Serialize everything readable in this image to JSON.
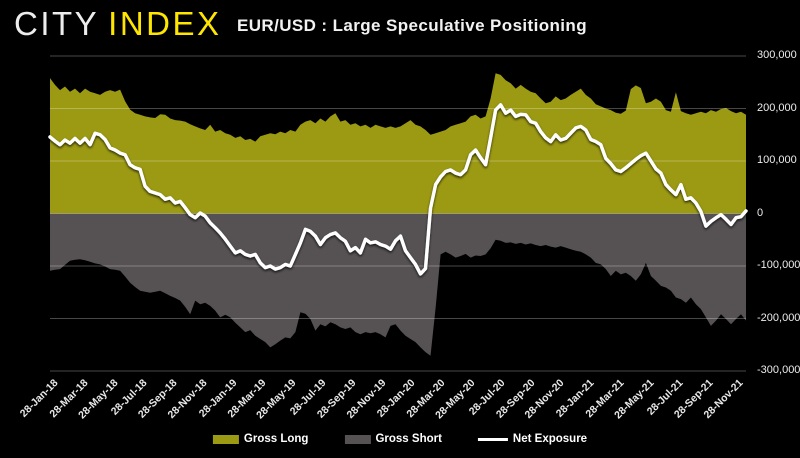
{
  "logo": {
    "city": "CITY",
    "index": "INDEX"
  },
  "title": "EUR/USD : Large Speculative Positioning",
  "colors": {
    "background": "#000000",
    "gross_long": "#9c9a12",
    "gross_short": "#565253",
    "net_exposure": "#ffffff",
    "gridline": "rgba(255,255,255,0.28)",
    "axis_text": "#ededed",
    "brand_yellow": "#ffe600"
  },
  "legend": {
    "items": [
      {
        "label": "Gross Long",
        "swatch": "area",
        "color": "#9c9a12"
      },
      {
        "label": "Gross Short",
        "swatch": "area",
        "color": "#565253"
      },
      {
        "label": "Net Exposure",
        "swatch": "line",
        "color": "#ffffff"
      }
    ]
  },
  "y_axis": {
    "ticks": [
      300000,
      200000,
      100000,
      0,
      -100000,
      -200000,
      -300000
    ],
    "tick_labels": [
      "300,000",
      "200,000",
      "100,000",
      "0",
      "-100,000",
      "-200,000",
      "-300,000"
    ]
  },
  "chart_data": {
    "type": "area",
    "title": "EUR/USD : Large Speculative Positioning",
    "x_description": "Weekly CFTC positioning observations, uniformly spaced from 28-Jan-18 to late Dec-21 (140 samples); values in contracts",
    "x_tick_labels": [
      "28-Jan-18",
      "28-Mar-18",
      "28-May-18",
      "28-Jul-18",
      "28-Sep-18",
      "28-Nov-18",
      "28-Jan-19",
      "28-Mar-19",
      "28-May-19",
      "28-Jul-19",
      "28-Sep-19",
      "28-Nov-19",
      "28-Jan-20",
      "28-Mar-20",
      "28-May-20",
      "28-Jul-20",
      "28-Sep-20",
      "28-Nov-20",
      "28-Jan-21",
      "28-Mar-21",
      "28-May-21",
      "28-Jul-21",
      "28-Sep-21",
      "28-Nov-21"
    ],
    "ylim": [
      -300000,
      300000
    ],
    "grid": true,
    "legend_position": "bottom",
    "series": [
      {
        "name": "Gross Long",
        "style": "area",
        "color": "#9c9a12",
        "values": [
          258000,
          245000,
          235000,
          242000,
          232000,
          238000,
          229000,
          238000,
          232000,
          229000,
          226000,
          232000,
          235000,
          232000,
          236000,
          214000,
          198000,
          191000,
          188000,
          185000,
          183000,
          182000,
          189000,
          188000,
          181000,
          178000,
          177000,
          175000,
          170000,
          166000,
          162000,
          159000,
          169000,
          156000,
          159000,
          153000,
          150000,
          144000,
          147000,
          140000,
          142000,
          137000,
          147000,
          150000,
          153000,
          151000,
          156000,
          153000,
          159000,
          156000,
          169000,
          175000,
          178000,
          172000,
          181000,
          175000,
          185000,
          191000,
          175000,
          178000,
          169000,
          172000,
          166000,
          169000,
          163000,
          169000,
          166000,
          163000,
          166000,
          163000,
          166000,
          172000,
          178000,
          169000,
          166000,
          159000,
          150000,
          153000,
          156000,
          159000,
          166000,
          169000,
          172000,
          175000,
          185000,
          188000,
          181000,
          185000,
          219000,
          267000,
          264000,
          254000,
          248000,
          238000,
          245000,
          238000,
          232000,
          229000,
          219000,
          210000,
          213000,
          223000,
          216000,
          219000,
          226000,
          232000,
          238000,
          226000,
          219000,
          208000,
          204000,
          200000,
          197000,
          192000,
          190000,
          196000,
          237000,
          244000,
          239000,
          210000,
          213000,
          219000,
          213000,
          197000,
          194000,
          231000,
          195000,
          191000,
          188000,
          191000,
          194000,
          191000,
          197000,
          194000,
          199000,
          201000,
          195000,
          191000,
          194000,
          188000
        ]
      },
      {
        "name": "Gross Short",
        "style": "area",
        "color": "#565253",
        "values": [
          -109000,
          -107000,
          -106000,
          -98000,
          -90000,
          -88000,
          -87000,
          -89000,
          -92000,
          -95000,
          -97000,
          -101000,
          -106000,
          -107000,
          -109000,
          -120000,
          -132000,
          -140000,
          -147000,
          -149000,
          -151000,
          -149000,
          -147000,
          -152000,
          -157000,
          -161000,
          -166000,
          -178000,
          -192000,
          -166000,
          -173000,
          -170000,
          -176000,
          -185000,
          -198000,
          -193000,
          -198000,
          -208000,
          -217000,
          -226000,
          -222000,
          -233000,
          -239000,
          -245000,
          -255000,
          -249000,
          -242000,
          -236000,
          -238000,
          -226000,
          -188000,
          -191000,
          -201000,
          -223000,
          -211000,
          -215000,
          -207000,
          -211000,
          -217000,
          -220000,
          -217000,
          -226000,
          -230000,
          -226000,
          -228000,
          -226000,
          -230000,
          -236000,
          -214000,
          -211000,
          -223000,
          -233000,
          -239000,
          -245000,
          -255000,
          -264000,
          -271000,
          -180000,
          -78000,
          -73000,
          -78000,
          -84000,
          -81000,
          -77000,
          -84000,
          -80000,
          -81000,
          -78000,
          -66000,
          -50000,
          -52000,
          -56000,
          -55000,
          -58000,
          -56000,
          -59000,
          -57000,
          -60000,
          -62000,
          -60000,
          -63000,
          -65000,
          -62000,
          -65000,
          -68000,
          -71000,
          -73000,
          -78000,
          -84000,
          -94000,
          -97000,
          -106000,
          -119000,
          -109000,
          -116000,
          -113000,
          -119000,
          -128000,
          -116000,
          -94000,
          -119000,
          -128000,
          -138000,
          -141000,
          -147000,
          -160000,
          -163000,
          -170000,
          -160000,
          -173000,
          -182000,
          -198000,
          -214000,
          -204000,
          -192000,
          -201000,
          -211000,
          -201000,
          -192000,
          -204000
        ]
      },
      {
        "name": "Net Exposure",
        "style": "line",
        "color": "#ffffff",
        "values": [
          146000,
          138000,
          131000,
          140000,
          134000,
          143000,
          134000,
          143000,
          131000,
          153000,
          150000,
          141000,
          125000,
          121000,
          115000,
          112000,
          93000,
          87000,
          84000,
          52000,
          42000,
          39000,
          36000,
          27000,
          30000,
          20000,
          23000,
          11000,
          -2000,
          -8000,
          1000,
          -5000,
          -18000,
          -27000,
          -37000,
          -49000,
          -62000,
          -75000,
          -71000,
          -78000,
          -81000,
          -78000,
          -94000,
          -103000,
          -100000,
          -106000,
          -103000,
          -97000,
          -100000,
          -78000,
          -56000,
          -30000,
          -34000,
          -43000,
          -59000,
          -46000,
          -40000,
          -37000,
          -46000,
          -53000,
          -71000,
          -65000,
          -75000,
          -49000,
          -56000,
          -54000,
          -59000,
          -62000,
          -68000,
          -52000,
          -43000,
          -71000,
          -84000,
          -97000,
          -115000,
          -105000,
          10000,
          55000,
          70000,
          80000,
          83000,
          77000,
          74000,
          83000,
          112000,
          121000,
          106000,
          93000,
          144000,
          197000,
          207000,
          191000,
          197000,
          185000,
          189000,
          188000,
          175000,
          172000,
          156000,
          144000,
          137000,
          150000,
          140000,
          143000,
          153000,
          163000,
          166000,
          159000,
          141000,
          137000,
          131000,
          105000,
          95000,
          83000,
          80000,
          87000,
          95000,
          103000,
          110000,
          115000,
          100000,
          85000,
          77000,
          55000,
          45000,
          36000,
          55000,
          27000,
          30000,
          20000,
          4000,
          -24000,
          -15000,
          -8000,
          -2000,
          -11000,
          -21000,
          -8000,
          -6000,
          5000
        ]
      }
    ]
  }
}
